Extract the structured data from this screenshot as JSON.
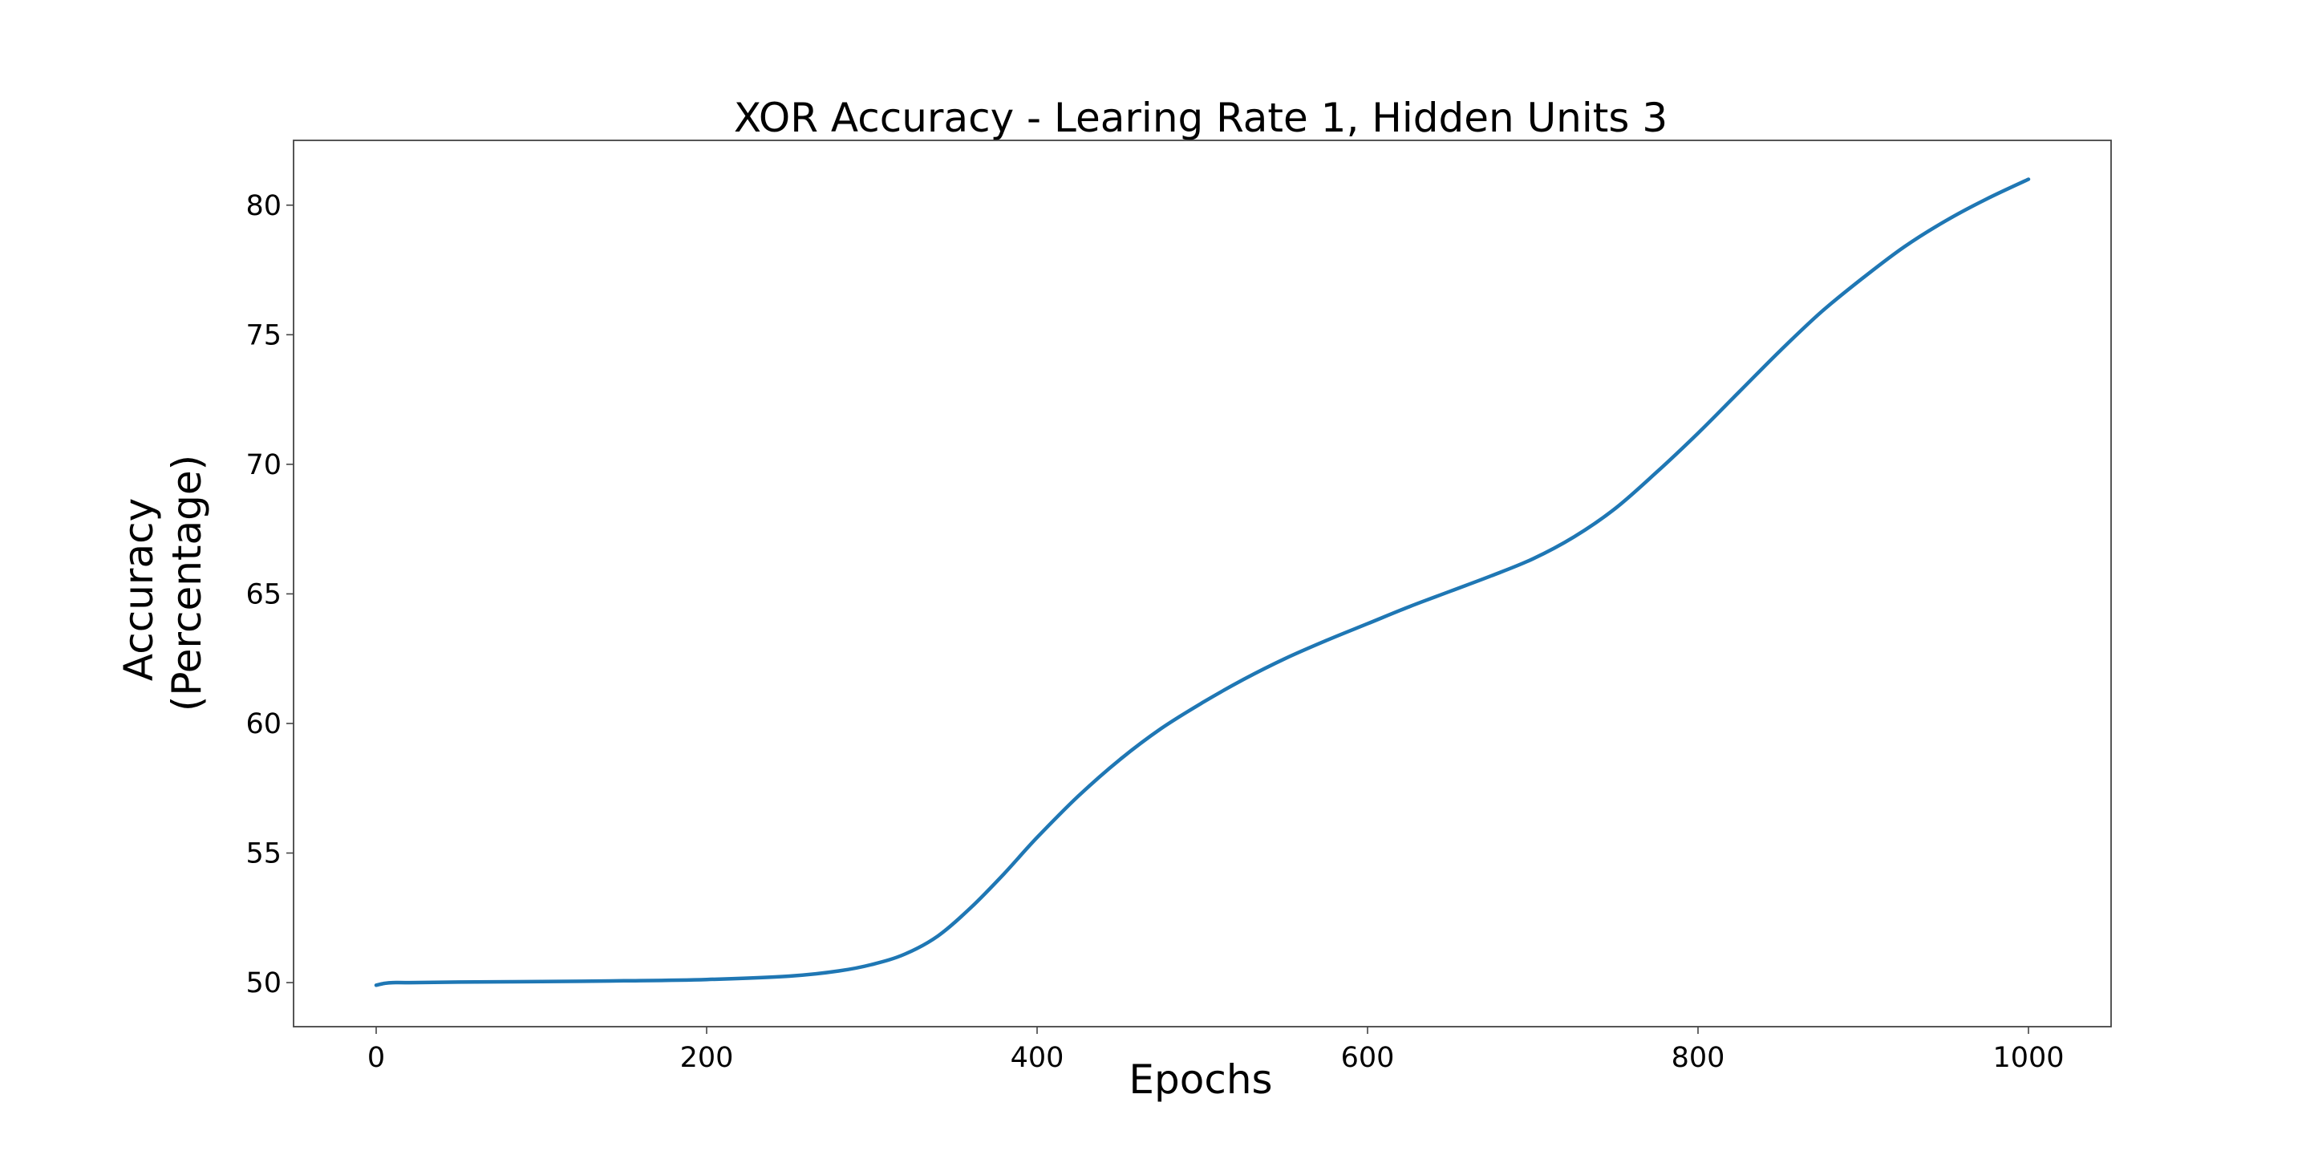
{
  "chart_data": {
    "type": "line",
    "title": "XOR Accuracy - Learing Rate 1, Hidden Units 3",
    "xlabel": "Epochs",
    "ylabel_lines": [
      "Accuracy",
      "(Percentage)"
    ],
    "xlim": [
      -50,
      1050
    ],
    "ylim": [
      48.3,
      82.5
    ],
    "xticks": [
      0,
      200,
      400,
      600,
      800,
      1000
    ],
    "xtick_labels": [
      "0",
      "200",
      "400",
      "600",
      "800",
      "1000"
    ],
    "yticks": [
      50,
      55,
      60,
      65,
      70,
      75,
      80
    ],
    "ytick_labels": [
      "50",
      "55",
      "60",
      "65",
      "70",
      "75",
      "80"
    ],
    "grid": false,
    "series": [
      {
        "color": "#1f77b4",
        "x": [
          0,
          5,
          10,
          20,
          50,
          100,
          150,
          200,
          250,
          280,
          300,
          320,
          340,
          360,
          380,
          400,
          425,
          450,
          475,
          500,
          525,
          550,
          575,
          600,
          625,
          650,
          675,
          700,
          725,
          750,
          775,
          800,
          825,
          850,
          875,
          900,
          925,
          950,
          975,
          1000
        ],
        "y": [
          49.9,
          49.97,
          50.0,
          50.0,
          50.02,
          50.04,
          50.07,
          50.12,
          50.25,
          50.45,
          50.7,
          51.1,
          51.8,
          52.9,
          54.2,
          55.6,
          57.2,
          58.6,
          59.8,
          60.8,
          61.7,
          62.5,
          63.2,
          63.85,
          64.5,
          65.1,
          65.7,
          66.35,
          67.2,
          68.3,
          69.7,
          71.2,
          72.8,
          74.4,
          75.9,
          77.2,
          78.4,
          79.4,
          80.25,
          81.0
        ]
      }
    ]
  }
}
